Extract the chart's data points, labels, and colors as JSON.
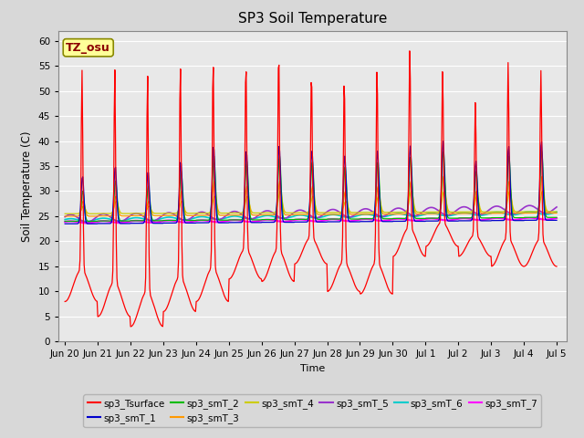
{
  "title": "SP3 Soil Temperature",
  "ylabel": "Soil Temperature (C)",
  "xlabel": "Time",
  "ylim": [
    0,
    62
  ],
  "yticks": [
    0,
    5,
    10,
    15,
    20,
    25,
    30,
    35,
    40,
    45,
    50,
    55,
    60
  ],
  "background_color": "#d8d8d8",
  "plot_bg": "#e8e8e8",
  "tz_label": "TZ_osu",
  "tz_box_color": "#ffff99",
  "tz_text_color": "#8b0000",
  "series_colors": {
    "sp3_Tsurface": "#ff0000",
    "sp3_smT_1": "#0000cc",
    "sp3_smT_2": "#00bb00",
    "sp3_smT_3": "#ff9900",
    "sp3_smT_4": "#cccc00",
    "sp3_smT_5": "#9933cc",
    "sp3_smT_6": "#00cccc",
    "sp3_smT_7": "#ff00ff"
  },
  "x_tick_labels": [
    "Jun 20",
    "Jun 21",
    "Jun 22",
    "Jun 23",
    "Jun 24",
    "Jun 25",
    "Jun 26",
    "Jun 27",
    "Jun 28",
    "Jun 29",
    "Jun 30",
    "Jul 1",
    "Jul 2",
    "Jul 3",
    "Jul 4",
    "Jul 5"
  ],
  "x_tick_positions": [
    0,
    1,
    2,
    3,
    4,
    5,
    6,
    7,
    8,
    9,
    10,
    11,
    12,
    13,
    14,
    15
  ],
  "peak_heights": [
    50,
    50,
    49,
    51,
    52,
    52,
    54,
    50.5,
    49,
    51,
    55,
    51,
    45,
    52,
    50.5
  ],
  "night_lows": [
    8,
    5,
    3,
    6,
    8,
    12.5,
    12,
    15.5,
    10,
    9.5,
    17,
    19,
    17,
    15,
    15
  ],
  "smT1_peaks": [
    33,
    35,
    34,
    36,
    39,
    38,
    39,
    38,
    37,
    38,
    39,
    40,
    36,
    39,
    40
  ],
  "smT2_peaks": [
    30,
    32,
    31,
    34,
    37,
    36,
    37,
    36,
    35,
    36,
    37,
    38,
    34,
    37,
    38
  ],
  "smT3_peaks": [
    28,
    29,
    28,
    30,
    32,
    31,
    32,
    31,
    30,
    31,
    32,
    33,
    30,
    32,
    33
  ],
  "smT4_peaks": [
    27,
    28,
    27,
    28,
    29,
    29,
    30,
    29,
    28,
    29,
    30,
    30,
    29,
    30,
    30
  ]
}
